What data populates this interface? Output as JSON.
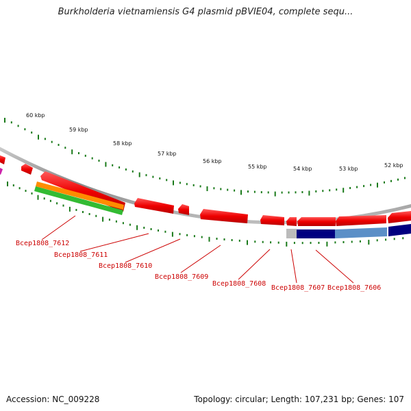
{
  "header": {
    "title": "Burkholderia vietnamiensis G4 plasmid pBVIE04, complete sequ..."
  },
  "footer": {
    "accession": "Accession: NC_009228",
    "summary": "Topology: circular; Length: 107,231 bp; Genes: 107"
  },
  "map": {
    "scale_labels": [
      "60 kbp",
      "59 kbp",
      "58 kbp",
      "57 kbp",
      "56 kbp",
      "55 kbp",
      "54 kbp",
      "53 kbp",
      "52 kbp"
    ],
    "gene_labels": [
      "Bcep1808_7612",
      "Bcep1808_7611",
      "Bcep1808_7610",
      "Bcep1808_7609",
      "Bcep1808_7608",
      "Bcep1808_7607",
      "Bcep1808_7606"
    ],
    "colors": {
      "backbone": "#8a8a8a",
      "cds": "#ff0000",
      "orange_track": "#ff8c00",
      "green_track": "#33bb33",
      "dark_blue_track": "#000080",
      "light_blue_track": "#5b8fc7",
      "tick": "#1a7a1a",
      "label": "#cc0000"
    }
  }
}
